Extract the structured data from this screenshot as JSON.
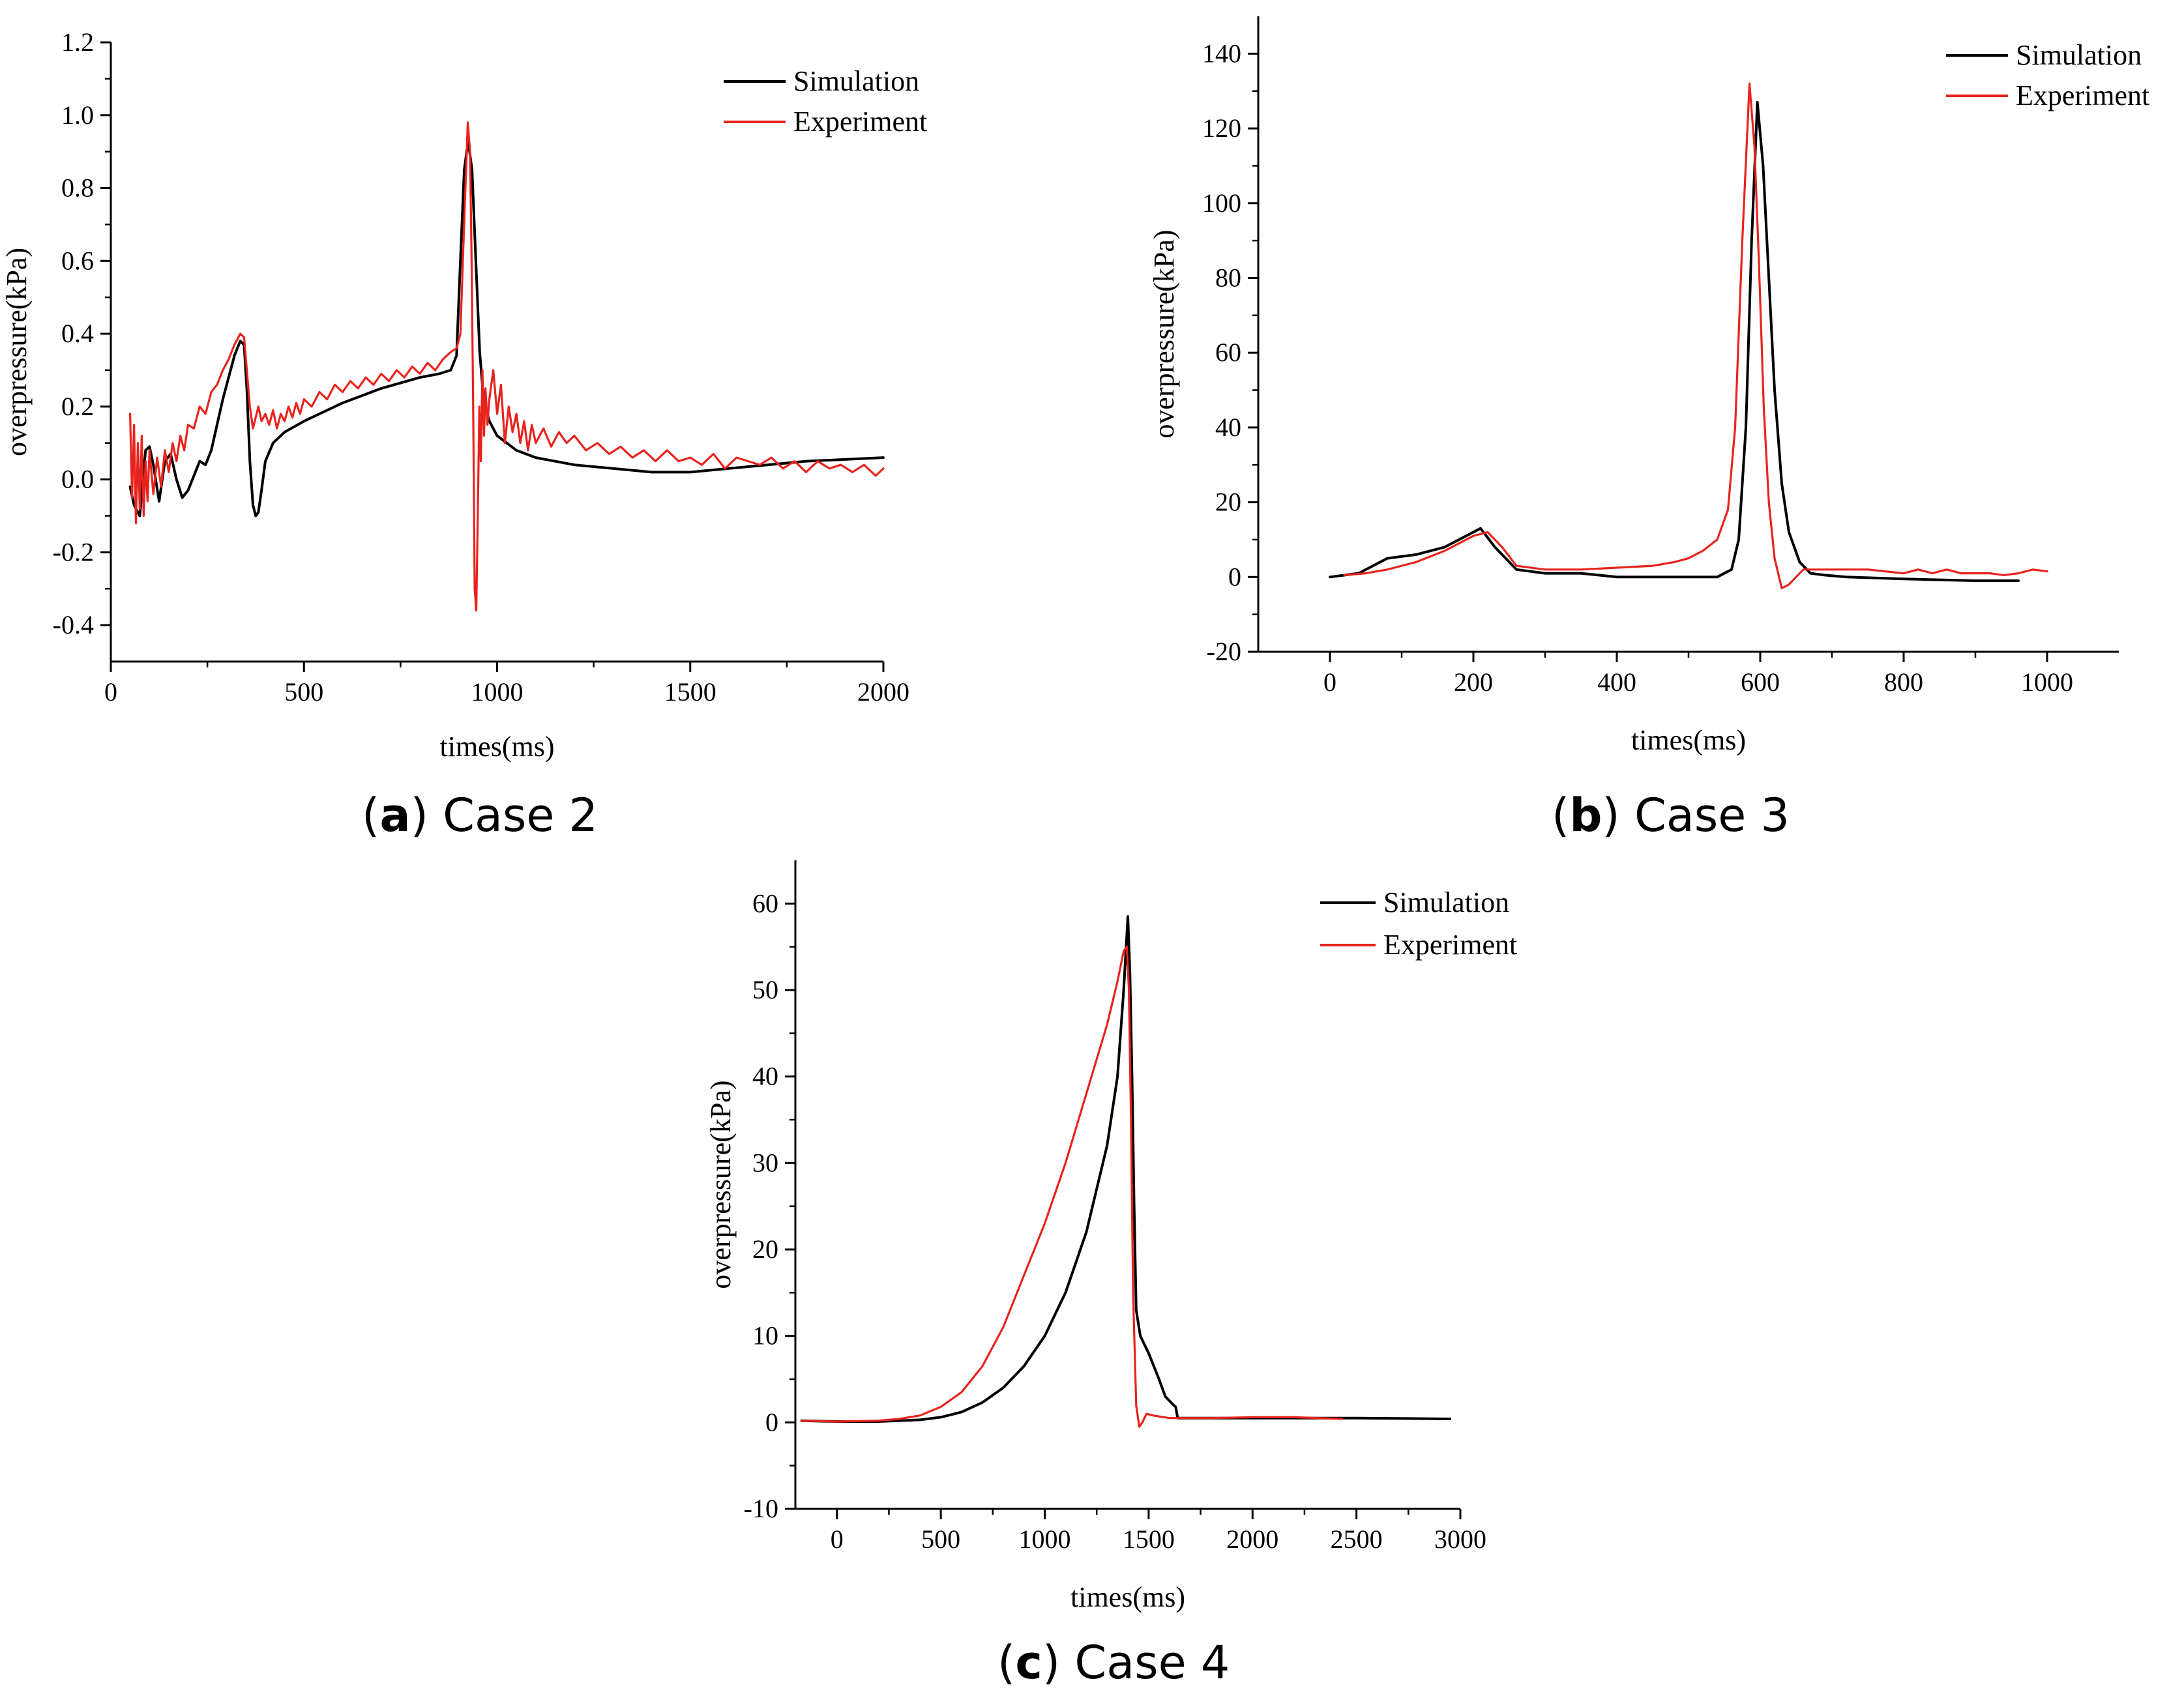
{
  "chart_data": [
    {
      "id": "a",
      "type": "line",
      "caption_letter": "a",
      "caption_text": "Case 2",
      "xlabel": "times(ms)",
      "ylabel": "overpressure(kPa)",
      "xlim": [
        0,
        2000
      ],
      "ylim": [
        -0.5,
        1.2
      ],
      "xticks": [
        0,
        500,
        1000,
        1500,
        2000
      ],
      "yticks": [
        -0.4,
        -0.2,
        0.0,
        0.2,
        0.4,
        0.6,
        0.8,
        1.0,
        1.2
      ],
      "ytick_decimals": 1,
      "legend_position": "top-right",
      "series": [
        {
          "name": "Simulation",
          "color": "#000000",
          "x": [
            50,
            60,
            75,
            90,
            100,
            110,
            125,
            140,
            155,
            170,
            185,
            200,
            215,
            230,
            245,
            260,
            275,
            290,
            305,
            320,
            335,
            345,
            352,
            360,
            368,
            375,
            382,
            390,
            400,
            420,
            450,
            500,
            600,
            700,
            800,
            850,
            880,
            895,
            905,
            915,
            925,
            935,
            945,
            955,
            965,
            980,
            1000,
            1050,
            1100,
            1200,
            1300,
            1400,
            1500,
            1600,
            1700,
            1800,
            1900,
            2000
          ],
          "y": [
            -0.02,
            -0.07,
            -0.1,
            0.08,
            0.09,
            0.04,
            -0.06,
            0.05,
            0.07,
            0.0,
            -0.05,
            -0.03,
            0.01,
            0.05,
            0.04,
            0.08,
            0.15,
            0.22,
            0.28,
            0.34,
            0.38,
            0.37,
            0.25,
            0.05,
            -0.07,
            -0.1,
            -0.09,
            -0.03,
            0.05,
            0.1,
            0.13,
            0.16,
            0.21,
            0.25,
            0.28,
            0.29,
            0.3,
            0.34,
            0.6,
            0.85,
            0.93,
            0.85,
            0.6,
            0.35,
            0.22,
            0.16,
            0.12,
            0.08,
            0.06,
            0.04,
            0.03,
            0.02,
            0.02,
            0.03,
            0.04,
            0.05,
            0.055,
            0.06
          ]
        },
        {
          "name": "Experiment",
          "color": "#e8231e",
          "x": [
            50,
            55,
            60,
            65,
            70,
            75,
            80,
            85,
            90,
            95,
            100,
            110,
            120,
            130,
            140,
            150,
            160,
            170,
            180,
            190,
            200,
            215,
            230,
            245,
            260,
            275,
            290,
            305,
            320,
            335,
            345,
            352,
            360,
            368,
            375,
            382,
            390,
            400,
            410,
            420,
            430,
            440,
            450,
            460,
            470,
            480,
            490,
            500,
            520,
            540,
            560,
            580,
            600,
            620,
            640,
            660,
            680,
            700,
            720,
            740,
            760,
            780,
            800,
            820,
            840,
            860,
            880,
            895,
            905,
            912,
            918,
            924,
            930,
            934,
            938,
            942,
            946,
            950,
            954,
            958,
            962,
            966,
            970,
            975,
            980,
            990,
            1000,
            1010,
            1020,
            1030,
            1040,
            1050,
            1060,
            1070,
            1080,
            1090,
            1100,
            1120,
            1140,
            1160,
            1180,
            1200,
            1230,
            1260,
            1290,
            1320,
            1350,
            1380,
            1410,
            1440,
            1470,
            1500,
            1530,
            1560,
            1590,
            1620,
            1650,
            1680,
            1710,
            1740,
            1770,
            1800,
            1830,
            1860,
            1890,
            1920,
            1950,
            1980,
            2000
          ],
          "y": [
            0.18,
            -0.05,
            0.15,
            -0.12,
            0.1,
            -0.08,
            0.12,
            -0.1,
            0.05,
            -0.06,
            0.08,
            -0.04,
            0.06,
            -0.02,
            0.08,
            0.02,
            0.1,
            0.05,
            0.12,
            0.08,
            0.15,
            0.14,
            0.2,
            0.18,
            0.24,
            0.26,
            0.3,
            0.33,
            0.37,
            0.4,
            0.39,
            0.3,
            0.2,
            0.14,
            0.17,
            0.2,
            0.16,
            0.18,
            0.15,
            0.19,
            0.14,
            0.18,
            0.16,
            0.2,
            0.17,
            0.21,
            0.18,
            0.22,
            0.2,
            0.24,
            0.22,
            0.26,
            0.24,
            0.27,
            0.25,
            0.28,
            0.26,
            0.29,
            0.27,
            0.3,
            0.28,
            0.31,
            0.29,
            0.32,
            0.3,
            0.33,
            0.35,
            0.36,
            0.4,
            0.62,
            0.8,
            0.98,
            0.9,
            0.6,
            0.2,
            -0.3,
            -0.36,
            -0.1,
            0.2,
            0.05,
            0.3,
            0.12,
            0.25,
            0.15,
            0.22,
            0.3,
            0.18,
            0.26,
            0.1,
            0.2,
            0.13,
            0.18,
            0.1,
            0.16,
            0.08,
            0.15,
            0.1,
            0.14,
            0.09,
            0.13,
            0.1,
            0.12,
            0.08,
            0.1,
            0.07,
            0.09,
            0.06,
            0.08,
            0.05,
            0.08,
            0.05,
            0.06,
            0.04,
            0.07,
            0.03,
            0.06,
            0.05,
            0.04,
            0.06,
            0.03,
            0.05,
            0.02,
            0.05,
            0.03,
            0.04,
            0.02,
            0.04,
            0.01,
            0.03
          ]
        }
      ]
    },
    {
      "id": "b",
      "type": "line",
      "caption_letter": "b",
      "caption_text": "Case 3",
      "xlabel": "times(ms)",
      "ylabel": "overpressure(kPa)",
      "xlim": [
        -100,
        1100
      ],
      "ylim": [
        -20,
        150
      ],
      "xticks": [
        0,
        200,
        400,
        600,
        800,
        1000
      ],
      "yticks": [
        -20,
        0,
        20,
        40,
        60,
        80,
        100,
        120,
        140
      ],
      "ytick_decimals": 0,
      "legend_position": "top-right",
      "series": [
        {
          "name": "Simulation",
          "color": "#000000",
          "x": [
            0,
            40,
            60,
            80,
            120,
            160,
            190,
            210,
            230,
            260,
            300,
            350,
            400,
            450,
            500,
            540,
            560,
            570,
            580,
            588,
            596,
            604,
            612,
            620,
            630,
            640,
            655,
            670,
            690,
            720,
            800,
            900,
            960
          ],
          "y": [
            0,
            1,
            3,
            5,
            6,
            8,
            11,
            13,
            8,
            2,
            1,
            1,
            0,
            0,
            0,
            0,
            2,
            10,
            40,
            90,
            127,
            110,
            80,
            50,
            25,
            12,
            4,
            1,
            0.5,
            0,
            -0.5,
            -1,
            -1
          ]
        },
        {
          "name": "Experiment",
          "color": "#e8231e",
          "x": [
            20,
            50,
            80,
            120,
            160,
            200,
            220,
            240,
            260,
            300,
            350,
            400,
            450,
            480,
            500,
            520,
            540,
            555,
            565,
            575,
            585,
            592,
            598,
            605,
            612,
            620,
            630,
            640,
            650,
            660,
            680,
            700,
            750,
            800,
            820,
            840,
            860,
            880,
            900,
            920,
            940,
            960,
            980,
            1000
          ],
          "y": [
            0.5,
            1,
            2,
            4,
            7,
            11,
            12,
            8,
            3,
            2,
            2,
            2.5,
            3,
            4,
            5,
            7,
            10,
            18,
            40,
            90,
            132,
            115,
            85,
            45,
            20,
            5,
            -3,
            -2,
            0,
            2,
            2,
            2,
            2,
            1,
            2,
            1,
            2,
            1,
            1,
            1,
            0.5,
            1,
            2,
            1.5
          ]
        }
      ]
    },
    {
      "id": "c",
      "type": "line",
      "caption_letter": "c",
      "caption_text": "Case 4",
      "xlabel": "times(ms)",
      "ylabel": "overpressure(kPa)",
      "xlim": [
        -200,
        3000
      ],
      "ylim": [
        -10,
        65
      ],
      "xticks": [
        0,
        500,
        1000,
        1500,
        2000,
        2500,
        3000
      ],
      "yticks": [
        -10,
        0,
        10,
        20,
        30,
        40,
        50,
        60
      ],
      "ytick_decimals": 0,
      "legend_position": "top-right",
      "series": [
        {
          "name": "Simulation",
          "color": "#000000",
          "x": [
            -170,
            0,
            200,
            400,
            500,
            600,
            700,
            800,
            900,
            1000,
            1100,
            1200,
            1300,
            1350,
            1380,
            1400,
            1410,
            1420,
            1430,
            1440,
            1460,
            1500,
            1550,
            1580,
            1600,
            1620,
            1630,
            1640,
            1700,
            2000,
            2500,
            2950
          ],
          "y": [
            0.2,
            0.1,
            0.1,
            0.3,
            0.6,
            1.2,
            2.3,
            4,
            6.5,
            10,
            15,
            22,
            32,
            40,
            50,
            58.5,
            52,
            40,
            25,
            13,
            10,
            8,
            5,
            3,
            2.5,
            2,
            1.8,
            0.5,
            0.5,
            0.5,
            0.5,
            0.4
          ]
        },
        {
          "name": "Experiment",
          "color": "#e8231e",
          "x": [
            -170,
            0,
            200,
            300,
            400,
            500,
            600,
            700,
            800,
            900,
            1000,
            1100,
            1200,
            1300,
            1350,
            1380,
            1395,
            1405,
            1415,
            1425,
            1440,
            1455,
            1470,
            1490,
            1520,
            1600,
            1800,
            2000,
            2200,
            2430
          ],
          "y": [
            0.2,
            0.1,
            0.2,
            0.4,
            0.8,
            1.8,
            3.5,
            6.5,
            11,
            17,
            23,
            30,
            38,
            46,
            51,
            54.5,
            55,
            50,
            35,
            15,
            2,
            -0.5,
            0,
            1,
            0.8,
            0.5,
            0.5,
            0.6,
            0.6,
            0.4
          ]
        }
      ]
    }
  ]
}
